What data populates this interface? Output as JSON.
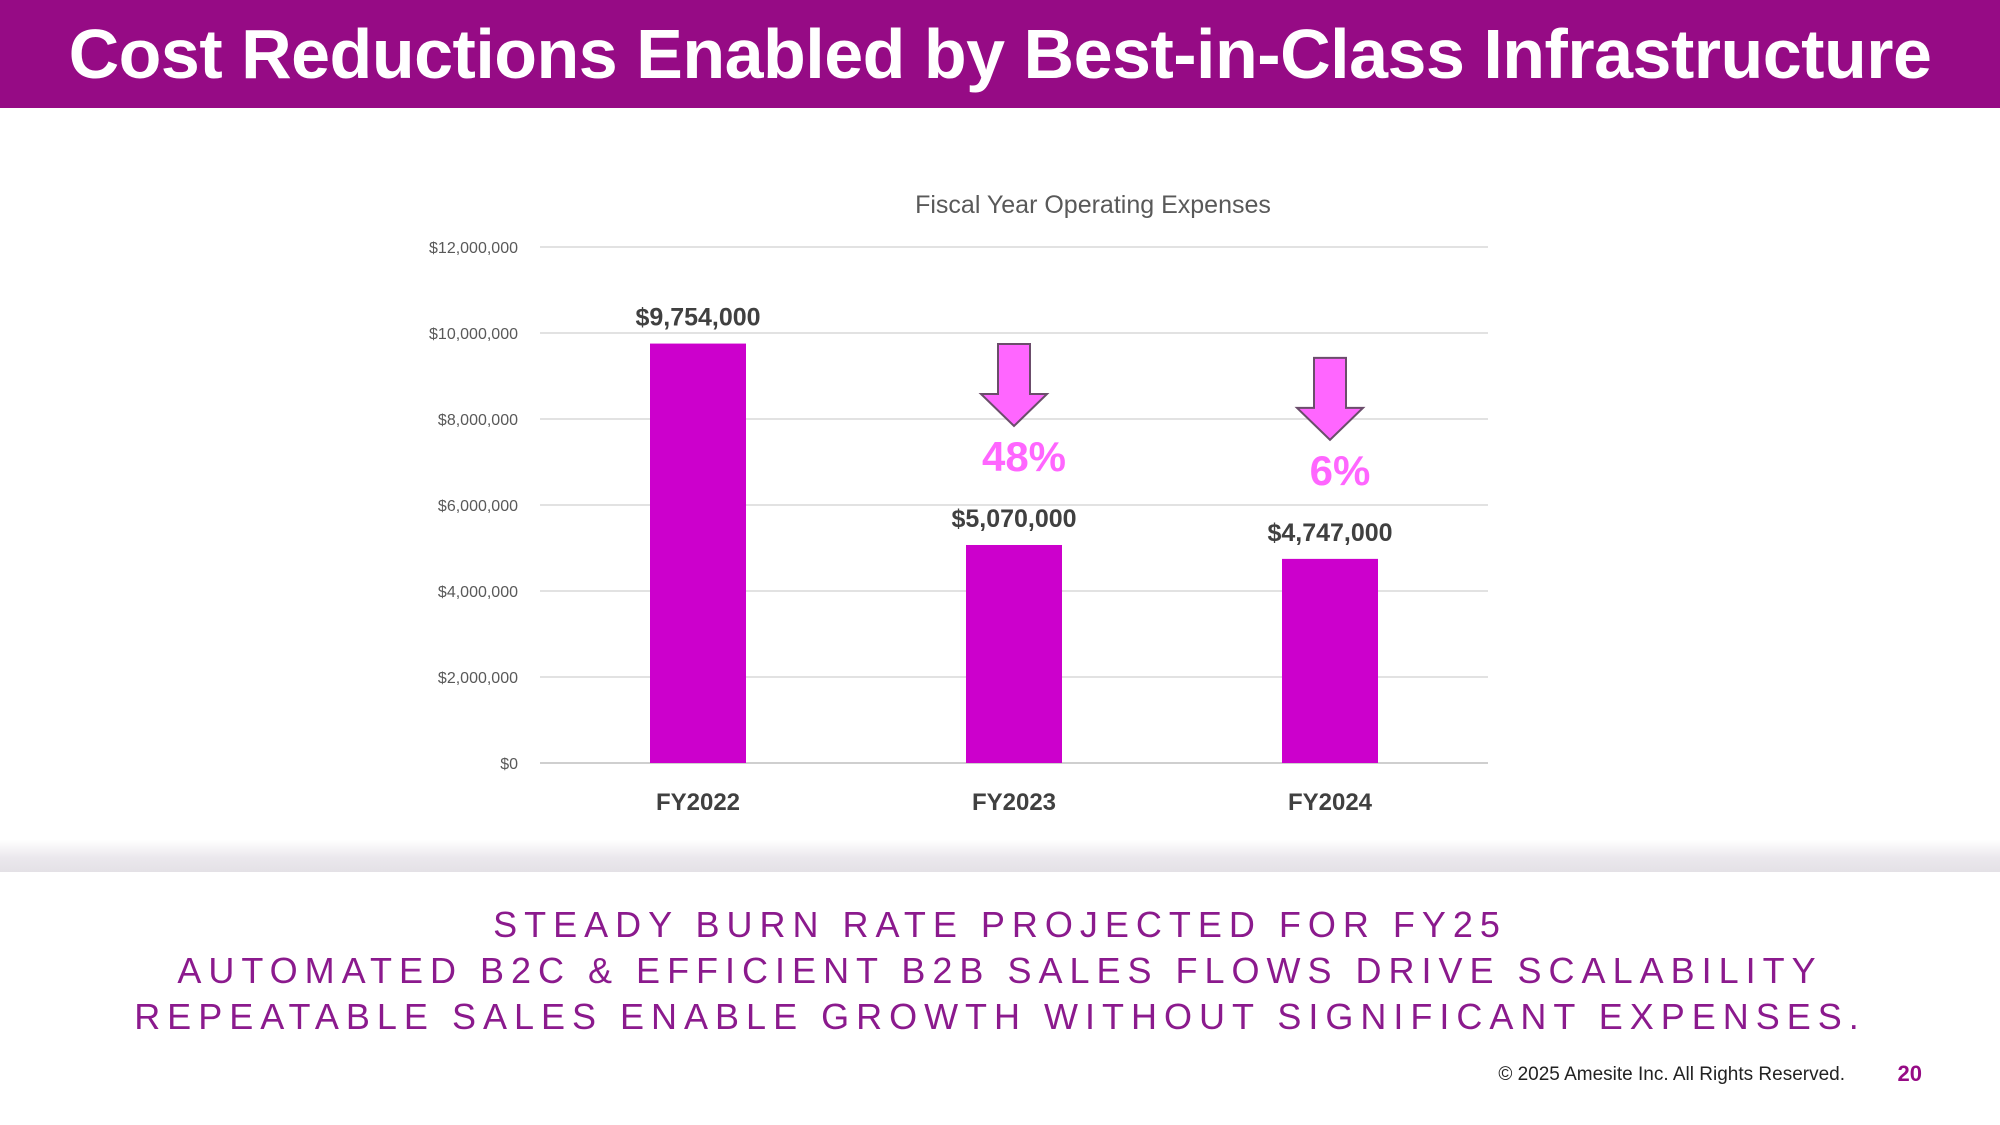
{
  "slide": {
    "title": "Cost Reductions Enabled by Best-in-Class Infrastructure",
    "taglines": [
      "STEADY BURN RATE PROJECTED FOR FY25",
      "AUTOMATED B2C & EFFICIENT B2B SALES FLOWS DRIVE SCALABILITY",
      "REPEATABLE SALES ENABLE GROWTH WITHOUT SIGNIFICANT EXPENSES."
    ],
    "copyright": "© 2025 Amesite Inc. All Rights Reserved.",
    "page_number": "20",
    "colors": {
      "brand": "#960b85",
      "bar": "#cc00cc",
      "arrow": "#ff66ff",
      "percent_label": "#ff66ff",
      "tagline": "#8b1a8d"
    }
  },
  "chart_data": {
    "type": "bar",
    "title": "Fiscal Year Operating Expenses",
    "categories": [
      "FY2022",
      "FY2023",
      "FY2024"
    ],
    "values": [
      9754000,
      5070000,
      4747000
    ],
    "value_labels": [
      "$9,754,000",
      "$5,070,000",
      "$4,747,000"
    ],
    "ylim": [
      0,
      12000000
    ],
    "yticks": [
      0,
      2000000,
      4000000,
      6000000,
      8000000,
      10000000,
      12000000
    ],
    "ytick_labels": [
      "$0",
      "$2,000,000",
      "$4,000,000",
      "$6,000,000",
      "$8,000,000",
      "$10,000,000",
      "$12,000,000"
    ],
    "xlabel": "",
    "ylabel": "",
    "grid": true,
    "annotations": [
      {
        "category": "FY2023",
        "text": "48%",
        "icon": "down-arrow-icon"
      },
      {
        "category": "FY2024",
        "text": "6%",
        "icon": "down-arrow-icon"
      }
    ]
  }
}
